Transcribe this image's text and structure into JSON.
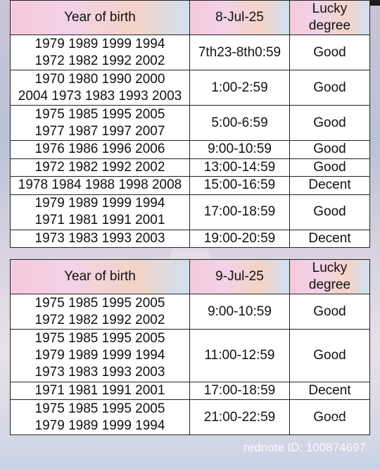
{
  "tables": [
    {
      "headers": {
        "year": "Year of birth",
        "date": "8-Jul-25",
        "lucky": "Lucky degree"
      },
      "rows": [
        {
          "years": [
            "1979 1989 1999 1994",
            "1972 1982 1992 2002"
          ],
          "time": "7th23-8th0:59",
          "degree": "Good"
        },
        {
          "years": [
            "1970 1980 1990 2000",
            "2004 1973 1983 1993 2003"
          ],
          "time": "1:00-2:59",
          "degree": "Good"
        },
        {
          "years": [
            "1975 1985 1995 2005",
            "1977 1987 1997 2007"
          ],
          "time": "5:00-6:59",
          "degree": "Good"
        },
        {
          "years": [
            "1976 1986 1996 2006"
          ],
          "time": "9:00-10:59",
          "degree": "Good"
        },
        {
          "years": [
            "1972 1982 1992 2002"
          ],
          "time": "13:00-14:59",
          "degree": "Good"
        },
        {
          "years": [
            "1978 1984 1988 1998 2008"
          ],
          "time": "15:00-16:59",
          "degree": "Decent"
        },
        {
          "years": [
            "1979 1989 1999 1994",
            "1971 1981 1991 2001"
          ],
          "time": "17:00-18:59",
          "degree": "Good"
        },
        {
          "years": [
            "1973 1983 1993 2003"
          ],
          "time": "19:00-20:59",
          "degree": "Decent"
        }
      ]
    },
    {
      "headers": {
        "year": "Year of birth",
        "date": "9-Jul-25",
        "lucky": "Lucky degree"
      },
      "rows": [
        {
          "years": [
            "1975 1985 1995 2005",
            "1972 1982 1992 2002"
          ],
          "time": "9:00-10:59",
          "degree": "Good"
        },
        {
          "years": [
            "1975 1985 1995 2005",
            "1979 1989 1999 1994",
            "1973 1983 1993 2003"
          ],
          "time": "11:00-12:59",
          "degree": "Good"
        },
        {
          "years": [
            "1971 1981 1991 2001"
          ],
          "time": "17:00-18:59",
          "degree": "Decent"
        },
        {
          "years": [
            "1975 1985 1995 2005",
            "1979 1989 1999 1994"
          ],
          "time": "21:00-22:59",
          "degree": "Good"
        }
      ]
    }
  ],
  "watermark": "rednote ID: 100874697"
}
